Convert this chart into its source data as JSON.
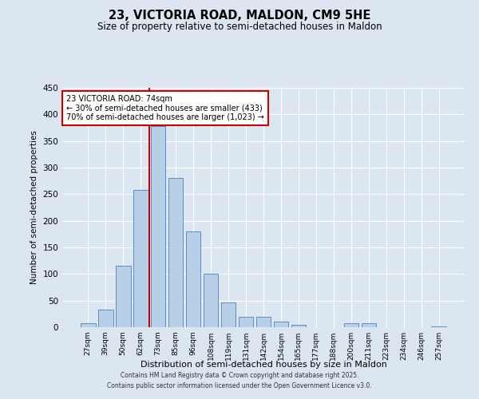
{
  "title_line1": "23, VICTORIA ROAD, MALDON, CM9 5HE",
  "title_line2": "Size of property relative to semi-detached houses in Maldon",
  "xlabel": "Distribution of semi-detached houses by size in Maldon",
  "ylabel": "Number of semi-detached properties",
  "categories": [
    "27sqm",
    "39sqm",
    "50sqm",
    "62sqm",
    "73sqm",
    "85sqm",
    "96sqm",
    "108sqm",
    "119sqm",
    "131sqm",
    "142sqm",
    "154sqm",
    "165sqm",
    "177sqm",
    "188sqm",
    "200sqm",
    "211sqm",
    "223sqm",
    "234sqm",
    "246sqm",
    "257sqm"
  ],
  "values": [
    7,
    33,
    115,
    258,
    378,
    280,
    180,
    100,
    47,
    20,
    20,
    11,
    5,
    0,
    0,
    7,
    7,
    0,
    0,
    0,
    2
  ],
  "bar_color": "#b8cfe8",
  "bar_edge_color": "#5b8ec4",
  "property_line_index": 4,
  "annotation_text_line1": "23 VICTORIA ROAD: 74sqm",
  "annotation_text_line2": "← 30% of semi-detached houses are smaller (433)",
  "annotation_text_line3": "70% of semi-detached houses are larger (1,023) →",
  "ylim": [
    0,
    450
  ],
  "yticks": [
    0,
    50,
    100,
    150,
    200,
    250,
    300,
    350,
    400,
    450
  ],
  "background_color": "#dce6f0",
  "plot_bg_color": "#dce6f0",
  "grid_color": "#ffffff",
  "line_color": "#cc0000",
  "annotation_box_color": "#ffffff",
  "annotation_box_edge": "#cc0000",
  "footer_line1": "Contains HM Land Registry data © Crown copyright and database right 2025.",
  "footer_line2": "Contains public sector information licensed under the Open Government Licence v3.0."
}
